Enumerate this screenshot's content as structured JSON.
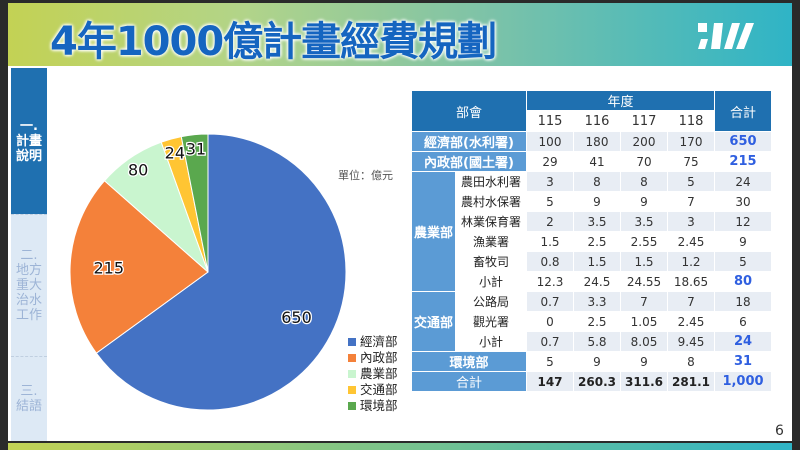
{
  "header": {
    "title": "4年1000億計畫經費規劃"
  },
  "sidebar": {
    "items": [
      {
        "label": "一.\n計畫\n說明",
        "active": true
      },
      {
        "label": "二.\n地方\n重大\n治水\n工作",
        "active": false
      },
      {
        "label": "三.\n結語",
        "active": false
      }
    ]
  },
  "unit_label": "單位：億元",
  "page_number": "6",
  "chart_data": {
    "type": "pie",
    "categories": [
      "經濟部",
      "內政部",
      "農業部",
      "交通部",
      "環境部"
    ],
    "values": [
      650,
      215,
      80,
      24,
      31
    ],
    "colors": [
      "#4472c4",
      "#f4813a",
      "#c9f5cf",
      "#ffc533",
      "#5aa84e"
    ],
    "legend_position": "right",
    "start": "top",
    "direction": "clockwise"
  },
  "table": {
    "header": {
      "dept": "部會",
      "year_group": "年度",
      "years": [
        "115",
        "116",
        "117",
        "118"
      ],
      "total": "合計"
    },
    "rows": [
      {
        "dept": "經濟部(水利署)",
        "values": [
          "100",
          "180",
          "200",
          "170"
        ],
        "total": "650",
        "total_bold": true
      },
      {
        "dept": "內政部(國土署)",
        "values": [
          "29",
          "41",
          "70",
          "75"
        ],
        "total": "215",
        "total_bold": true
      },
      {
        "group": "農業部",
        "sub": "農田水利署",
        "values": [
          "3",
          "8",
          "8",
          "5"
        ],
        "total": "24"
      },
      {
        "sub": "農村水保署",
        "values": [
          "5",
          "9",
          "9",
          "7"
        ],
        "total": "30"
      },
      {
        "sub": "林業保育署",
        "values": [
          "2",
          "3.5",
          "3.5",
          "3"
        ],
        "total": "12"
      },
      {
        "sub": "漁業署",
        "values": [
          "1.5",
          "2.5",
          "2.55",
          "2.45"
        ],
        "total": "9"
      },
      {
        "sub": "畜牧司",
        "values": [
          "0.8",
          "1.5",
          "1.5",
          "1.2"
        ],
        "total": "5"
      },
      {
        "sub": "小計",
        "values": [
          "12.3",
          "24.5",
          "24.55",
          "18.65"
        ],
        "total": "80",
        "total_bold": true
      },
      {
        "group": "交通部",
        "sub": "公路局",
        "values": [
          "0.7",
          "3.3",
          "7",
          "7"
        ],
        "total": "18"
      },
      {
        "sub": "觀光署",
        "values": [
          "0",
          "2.5",
          "1.05",
          "2.45"
        ],
        "total": "6"
      },
      {
        "sub": "小計",
        "values": [
          "0.7",
          "5.8",
          "8.05",
          "9.45"
        ],
        "total": "24",
        "total_bold": true
      },
      {
        "dept": "環境部",
        "values": [
          "5",
          "9",
          "9",
          "8"
        ],
        "total": "31",
        "total_bold": true
      },
      {
        "dept": "合計",
        "values": [
          "147",
          "260.3",
          "311.6",
          "281.1"
        ],
        "total": "1,000",
        "total_bold": true,
        "values_bold": true
      }
    ]
  }
}
